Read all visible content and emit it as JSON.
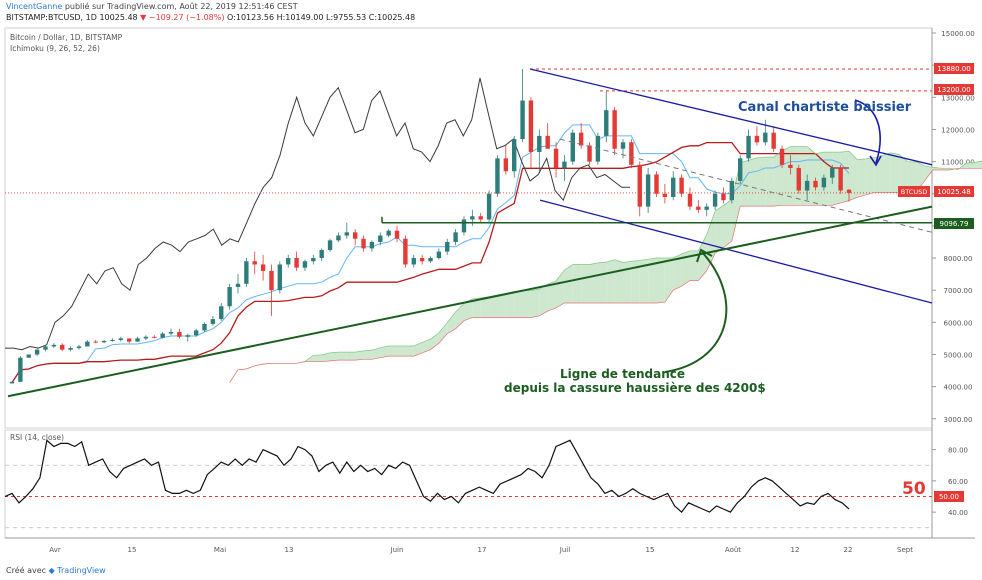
{
  "header": {
    "user": "VincentGanne",
    "published": "publié sur TradingView.com, Août 22, 2019 12:51:46 CEST",
    "symbol_line": "BITSTAMP:BTCUSD, 1D",
    "last": "10025.48",
    "change": "▼ −109.27 (−1.08%)",
    "ohlc": "O:10123.56 H:10149.00 L:9755.53 C:10025.48"
  },
  "pane_titles": {
    "main": "Bitcoin / Dollar, 1D, BITSTAMP",
    "indicator": "Ichimoku (9, 26, 52, 26)",
    "rsi": "RSI (14, close)"
  },
  "annotations": {
    "channel": "Canal chartiste baissier",
    "trend_1": "Ligne de tendance",
    "trend_2": "depuis la cassure haussière des 4200$",
    "rsi_level": "50"
  },
  "footer": {
    "prefix": "Créé avec",
    "brand": "TradingView"
  },
  "colors": {
    "up": "#2e7d7a",
    "down": "#e53935",
    "chikou": "#3a3a3a",
    "kijun": "#b71c1c",
    "tenkan": "#64b5f6",
    "cloud_bull": "#c8e6c9",
    "cloud_bear": "#ffcdd2",
    "channel": "#1a1aa8",
    "trend": "#1b5e20",
    "text_blue": "#1f4e9a",
    "text_green": "#1b5e20",
    "red_dash": "#e53935"
  },
  "chart_data": [
    {
      "type": "line",
      "title": "Bitcoin / Dollar, 1D, BITSTAMP",
      "x_ticks": [
        "Avr",
        "15",
        "Mai",
        "13",
        "Juin",
        "17",
        "Juil",
        "15",
        "Août",
        "12",
        "22",
        "Sept"
      ],
      "y_ticks": [
        "15000.00",
        "14000.00",
        "13000.00",
        "12000.00",
        "11000.00",
        "10000.00",
        "9000.00",
        "8000.00",
        "7000.00",
        "6000.00",
        "5000.00",
        "4000.00",
        "3000.00"
      ],
      "ylim": [
        2900,
        15000
      ],
      "price_labels": [
        {
          "text": "13880.00",
          "kind": "resistance"
        },
        {
          "text": "13200.00",
          "kind": "resistance"
        },
        {
          "text": "BTCUSD",
          "value": "10025.48",
          "kind": "last"
        },
        {
          "text": "9096.79",
          "kind": "support"
        }
      ],
      "series": [
        {
          "kind": "candles",
          "values": [
            [
              4100,
              4150,
              4100,
              4150
            ],
            [
              4150,
              4950,
              4150,
              4900
            ],
            [
              4900,
              5000,
              4900,
              5000
            ],
            [
              5000,
              5200,
              4950,
              5150
            ],
            [
              5150,
              5300,
              5100,
              5250
            ],
            [
              5250,
              5350,
              5200,
              5300
            ],
            [
              5300,
              5350,
              5100,
              5150
            ],
            [
              5150,
              5250,
              5100,
              5200
            ],
            [
              5200,
              5300,
              5150,
              5250
            ],
            [
              5250,
              5450,
              5250,
              5400
            ],
            [
              5400,
              5450,
              5350,
              5380
            ],
            [
              5380,
              5450,
              5350,
              5420
            ],
            [
              5420,
              5500,
              5400,
              5450
            ],
            [
              5450,
              5550,
              5400,
              5500
            ],
            [
              5500,
              5500,
              5350,
              5400
            ],
            [
              5400,
              5550,
              5400,
              5500
            ],
            [
              5500,
              5600,
              5450,
              5550
            ],
            [
              5550,
              5600,
              5500,
              5520
            ],
            [
              5520,
              5700,
              5500,
              5650
            ],
            [
              5650,
              5800,
              5600,
              5700
            ],
            [
              5700,
              5800,
              5500,
              5550
            ],
            [
              5550,
              5650,
              5400,
              5600
            ],
            [
              5600,
              5800,
              5550,
              5750
            ],
            [
              5750,
              6000,
              5700,
              5950
            ],
            [
              5950,
              6200,
              5900,
              6100
            ],
            [
              6100,
              6600,
              6050,
              6500
            ],
            [
              6500,
              7200,
              6400,
              7100
            ],
            [
              7100,
              7500,
              6900,
              7200
            ],
            [
              7200,
              8000,
              7100,
              7900
            ],
            [
              7900,
              8200,
              7500,
              7800
            ],
            [
              7800,
              8100,
              7300,
              7600
            ],
            [
              7600,
              7800,
              6200,
              7000
            ],
            [
              7000,
              7900,
              6900,
              7800
            ],
            [
              7800,
              8100,
              7700,
              8000
            ],
            [
              8000,
              8200,
              7600,
              7700
            ],
            [
              7700,
              7950,
              7600,
              7900
            ],
            [
              7900,
              8100,
              7800,
              8000
            ],
            [
              8000,
              8300,
              7900,
              8250
            ],
            [
              8250,
              8600,
              8200,
              8550
            ],
            [
              8550,
              8800,
              8500,
              8700
            ],
            [
              8700,
              9100,
              8600,
              8800
            ],
            [
              8800,
              8900,
              8400,
              8600
            ],
            [
              8600,
              8700,
              8200,
              8300
            ],
            [
              8300,
              8550,
              8200,
              8500
            ],
            [
              8500,
              8800,
              8400,
              8700
            ],
            [
              8700,
              8900,
              8650,
              8850
            ],
            [
              8850,
              9000,
              8500,
              8600
            ],
            [
              8600,
              8700,
              7700,
              7800
            ],
            [
              7800,
              8100,
              7700,
              8000
            ],
            [
              8000,
              8100,
              7800,
              7900
            ],
            [
              7900,
              8050,
              7850,
              8000
            ],
            [
              8000,
              8300,
              7950,
              8200
            ],
            [
              8200,
              8600,
              8100,
              8500
            ],
            [
              8500,
              8900,
              8400,
              8800
            ],
            [
              8800,
              9300,
              8700,
              9200
            ],
            [
              9200,
              9500,
              9000,
              9300
            ],
            [
              9300,
              9400,
              9100,
              9200
            ],
            [
              9200,
              10100,
              9100,
              10000
            ],
            [
              10000,
              11200,
              9900,
              11100
            ],
            [
              11100,
              11500,
              10600,
              10700
            ],
            [
              10700,
              11800,
              10500,
              11700
            ],
            [
              11700,
              13880,
              11600,
              12900
            ],
            [
              12900,
              13000,
              10800,
              11300
            ],
            [
              11300,
              12000,
              10700,
              11800
            ],
            [
              11800,
              12200,
              11500,
              11400
            ],
            [
              11400,
              11600,
              10500,
              10800
            ],
            [
              10800,
              11200,
              10400,
              11000
            ],
            [
              11000,
              12000,
              10900,
              11900
            ],
            [
              11900,
              12200,
              11400,
              11500
            ],
            [
              11500,
              11600,
              10900,
              11000
            ],
            [
              11000,
              11900,
              10900,
              11800
            ],
            [
              11800,
              13200,
              11600,
              12600
            ],
            [
              12600,
              12700,
              11200,
              11400
            ],
            [
              11400,
              11700,
              11100,
              11600
            ],
            [
              11600,
              11700,
              10800,
              10900
            ],
            [
              10900,
              11000,
              9300,
              9600
            ],
            [
              9600,
              10800,
              9400,
              10600
            ],
            [
              10600,
              10700,
              9900,
              10000
            ],
            [
              10000,
              10300,
              9700,
              9900
            ],
            [
              9900,
              10700,
              9800,
              10500
            ],
            [
              10500,
              10600,
              9900,
              10000
            ],
            [
              10000,
              10200,
              9500,
              9600
            ],
            [
              9600,
              9800,
              9400,
              9500
            ],
            [
              9500,
              9700,
              9300,
              9600
            ],
            [
              9600,
              10100,
              9500,
              10000
            ],
            [
              10000,
              10200,
              9700,
              9800
            ],
            [
              9800,
              10500,
              9700,
              10400
            ],
            [
              10400,
              11200,
              10300,
              11100
            ],
            [
              11100,
              12000,
              11000,
              11800
            ],
            [
              11800,
              12100,
              11500,
              11600
            ],
            [
              11600,
              12300,
              11500,
              11900
            ],
            [
              11900,
              12100,
              11300,
              11400
            ],
            [
              11400,
              11500,
              10800,
              10900
            ],
            [
              10900,
              11200,
              10600,
              10800
            ],
            [
              10800,
              10900,
              10000,
              10100
            ],
            [
              10100,
              10600,
              9800,
              10400
            ],
            [
              10400,
              10500,
              10100,
              10200
            ],
            [
              10200,
              10600,
              10100,
              10500
            ],
            [
              10500,
              10900,
              10300,
              10800
            ],
            [
              10800,
              10900,
              10000,
              10100
            ],
            [
              10123.56,
              10149,
              9755.53,
              10025.48
            ]
          ]
        },
        {
          "kind": "chikou",
          "values": [
            5200,
            5200,
            5150,
            5250,
            5200,
            5300,
            6000,
            6200,
            6500,
            7000,
            7500,
            7200,
            7600,
            7700,
            7200,
            7000,
            7800,
            8000,
            8300,
            8500,
            8400,
            8200,
            8500,
            8600,
            8700,
            8900,
            8400,
            8600,
            8500,
            9100,
            9700,
            10200,
            10500,
            11200,
            12200,
            13000,
            12200,
            11800,
            12400,
            13000,
            13300,
            12600,
            11900,
            12000,
            12900,
            13200,
            12500,
            11800,
            12200,
            11400,
            11300,
            11000,
            11500,
            12200,
            12300,
            11800,
            12300,
            13600,
            12500,
            11400,
            11500,
            11700,
            11000,
            10400,
            10600,
            11100,
            10100,
            9800,
            10500,
            10800,
            10900,
            10500,
            10600,
            10400,
            10200,
            10200
          ]
        }
      ]
    },
    {
      "type": "line",
      "title": "RSI (14, close)",
      "y_ticks": [
        "80.00",
        "60.00",
        "40.00"
      ],
      "ylim": [
        26,
        90
      ],
      "level_label": "50.00",
      "series": [
        {
          "name": "RSI",
          "values": [
            50,
            52,
            46,
            50,
            55,
            62,
            86,
            82,
            84,
            84,
            82,
            85,
            70,
            72,
            74,
            66,
            62,
            68,
            70,
            72,
            74,
            70,
            72,
            54,
            52,
            52,
            54,
            52,
            54,
            64,
            68,
            72,
            70,
            74,
            70,
            74,
            72,
            80,
            78,
            76,
            70,
            74,
            82,
            80,
            76,
            66,
            70,
            72,
            65,
            72,
            66,
            70,
            66,
            68,
            64,
            70,
            68,
            72,
            70,
            60,
            50,
            47,
            52,
            48,
            50,
            46,
            52,
            54,
            56,
            54,
            52,
            58,
            60,
            62,
            64,
            68,
            66,
            62,
            70,
            82,
            84,
            86,
            78,
            70,
            62,
            58,
            52,
            54,
            50,
            52,
            55,
            52,
            50,
            48,
            50,
            52,
            44,
            40,
            46,
            44,
            42,
            40,
            44,
            42,
            40,
            46,
            50,
            56,
            60,
            62,
            60,
            56,
            52,
            48,
            44,
            46,
            45,
            50,
            52,
            48,
            46,
            42
          ]
        }
      ]
    }
  ]
}
